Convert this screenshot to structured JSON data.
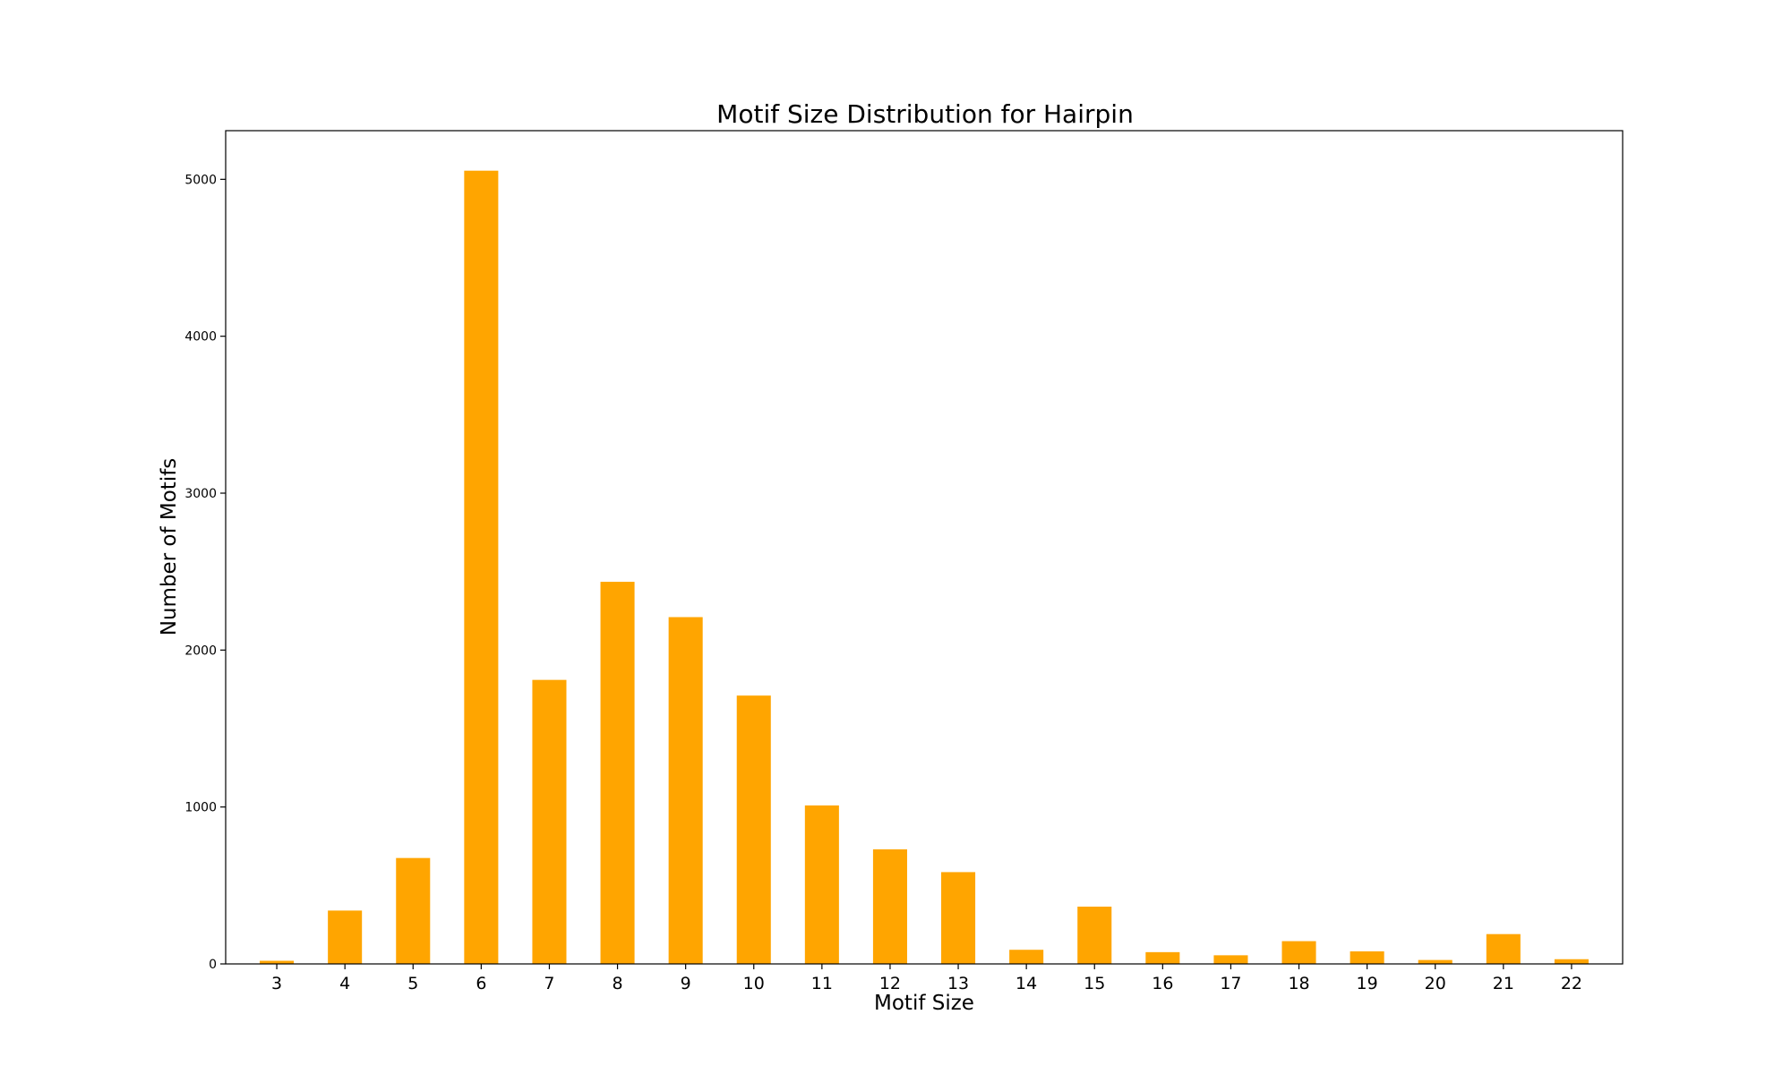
{
  "chart_data": {
    "type": "bar",
    "title": "Motif Size Distribution for Hairpin",
    "xlabel": "Motif Size",
    "ylabel": "Number of Motifs",
    "categories": [
      "3",
      "4",
      "5",
      "6",
      "7",
      "8",
      "9",
      "10",
      "11",
      "12",
      "13",
      "14",
      "15",
      "16",
      "17",
      "18",
      "19",
      "20",
      "21",
      "22"
    ],
    "values": [
      20,
      340,
      675,
      5055,
      1810,
      2435,
      2210,
      1710,
      1010,
      730,
      585,
      90,
      365,
      75,
      55,
      145,
      80,
      25,
      190,
      30
    ],
    "yticks": [
      0,
      1000,
      2000,
      3000,
      4000,
      5000
    ],
    "ylim": [
      0,
      5310
    ],
    "bar_color": "#FFA500",
    "grid": false,
    "legend": "none"
  }
}
